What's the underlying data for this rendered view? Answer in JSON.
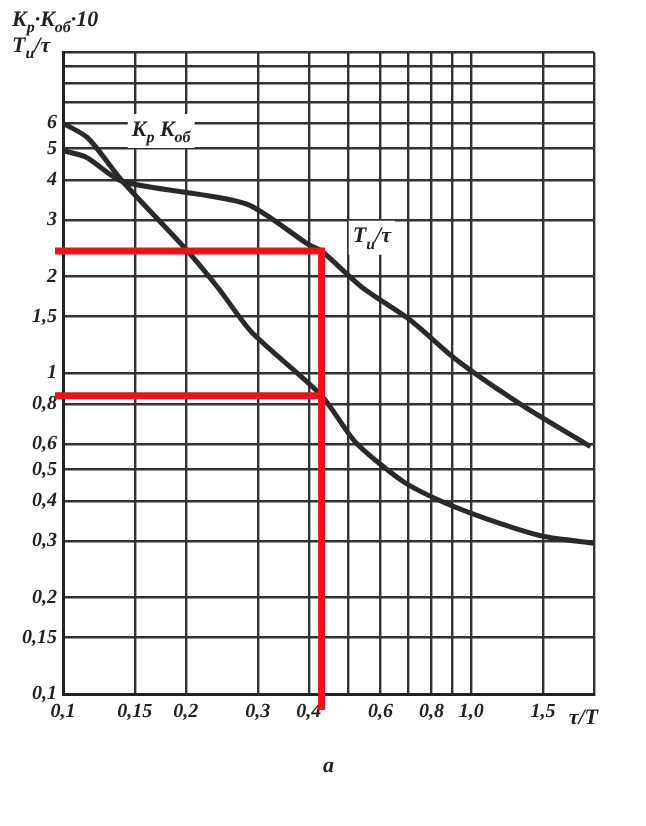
{
  "chart_data": {
    "type": "line",
    "ylabel": "K$_{р}$·K$_{об}$·10\nT$_{и}$/τ",
    "xlabel": "τ/T",
    "log": "xy",
    "grid": true,
    "legend": false,
    "marker": "none",
    "line_style": "solid",
    "xlim": [
      0.1,
      2
    ],
    "ylim": [
      0.1,
      10
    ],
    "xticks": [
      {
        "value": 0.1,
        "label": "0,1"
      },
      {
        "value": 0.15,
        "label": "0,15"
      },
      {
        "value": 0.2,
        "label": "0,2"
      },
      {
        "value": 0.3,
        "label": "0,3"
      },
      {
        "value": 0.4,
        "label": "0,4"
      },
      {
        "value": 0.5,
        "label": null
      },
      {
        "value": 0.6,
        "label": "0,6"
      },
      {
        "value": 0.7,
        "label": null
      },
      {
        "value": 0.8,
        "label": "0,8"
      },
      {
        "value": 0.9,
        "label": null
      },
      {
        "value": 1,
        "label": "1,0"
      },
      {
        "value": 1.5,
        "label": "1,5"
      },
      {
        "value": 2,
        "label": null
      }
    ],
    "yticks": [
      {
        "value": 0.1,
        "label": "0,1"
      },
      {
        "value": 0.15,
        "label": "0,15"
      },
      {
        "value": 0.2,
        "label": "0,2"
      },
      {
        "value": 0.3,
        "label": "0,3"
      },
      {
        "value": 0.4,
        "label": "0,4"
      },
      {
        "value": 0.5,
        "label": "0,5"
      },
      {
        "value": 0.6,
        "label": "0,6"
      },
      {
        "value": 0.8,
        "label": "0,8"
      },
      1,
      {
        "value": 1.5,
        "label": "1,5"
      },
      2,
      3,
      4,
      5,
      6,
      {
        "value": 7,
        "label": null
      },
      {
        "value": 8,
        "label": null
      },
      {
        "value": 9,
        "label": null
      },
      {
        "value": 10,
        "label": null
      }
    ],
    "series": [
      {
        "name": "K$_{р}$ K$_{об}$",
        "color": "#2a2a2a",
        "x": [
          0.1,
          0.115,
          0.14,
          0.2,
          0.24,
          0.29,
          0.43,
          0.52,
          0.68,
          0.84,
          1.1,
          1.5,
          2
        ],
        "values": [
          6.0,
          5.4,
          3.95,
          2.43,
          1.84,
          1.34,
          0.85,
          0.61,
          0.46,
          0.4,
          0.35,
          0.31,
          0.295
        ]
      },
      {
        "name": "T$_{и}$/τ",
        "color": "#2a2a2a",
        "x": [
          0.1,
          0.114,
          0.14,
          0.28,
          0.4,
          0.43,
          0.54,
          0.71,
          0.92,
          1.32,
          1.96
        ],
        "values": [
          4.93,
          4.7,
          3.95,
          3.37,
          2.51,
          2.4,
          1.85,
          1.46,
          1.1,
          0.8,
          0.59
        ]
      }
    ],
    "ref_lines": [
      {
        "axis": "x",
        "value": 0.43,
        "color": "#e8141c"
      },
      {
        "axis": "y",
        "value": 2.4,
        "color": "#e8141c"
      },
      {
        "axis": "y",
        "value": 0.85,
        "color": "#e8141c"
      }
    ],
    "annotations": [
      "a"
    ]
  }
}
